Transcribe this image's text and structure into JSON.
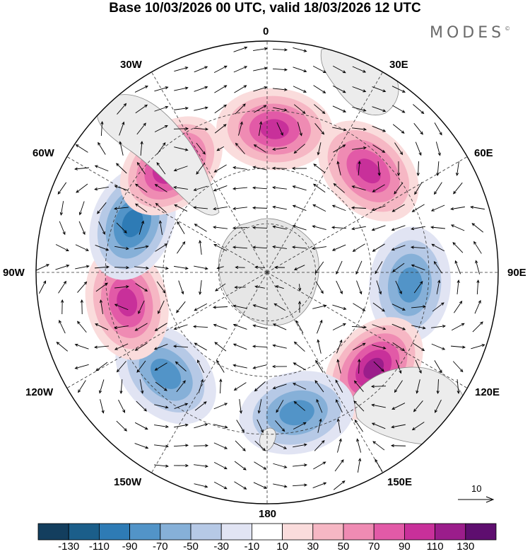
{
  "title": "Base 10/03/2026 00 UTC, valid 18/03/2026 12 UTC",
  "brand": "MODES",
  "brand_mark": "©",
  "longitude_labels": {
    "l0": "0",
    "l30e": "30E",
    "l60e": "60E",
    "l90e": "90E",
    "l120e": "120E",
    "l150e": "150E",
    "l180": "180",
    "l150w": "150W",
    "l120w": "120W",
    "l90w": "90W",
    "l60w": "60W",
    "l30w": "30W"
  },
  "colorbar": {
    "labels": [
      "-130",
      "-110",
      "-90",
      "-70",
      "-50",
      "-30",
      "-10",
      "10",
      "30",
      "50",
      "70",
      "90",
      "110",
      "130"
    ],
    "colors": [
      "#133e5e",
      "#1b5e8a",
      "#2e7bb5",
      "#5294c8",
      "#86b0d8",
      "#b6c9e6",
      "#e1e4f3",
      "#ffffff",
      "#fadcdc",
      "#f6b7c4",
      "#ef8bb3",
      "#e25aa7",
      "#c8309a",
      "#9b1d8b",
      "#5e0e6f"
    ]
  },
  "reference_vector_label": "10",
  "anomaly_cells": [
    {
      "lon": 3,
      "level": 4
    },
    {
      "lon": 45,
      "level": 4
    },
    {
      "lon": 95,
      "level": -3
    },
    {
      "lon": 132,
      "level": 5
    },
    {
      "lon": 168,
      "level": -3
    },
    {
      "lon": 225,
      "level": -3
    },
    {
      "lon": 258,
      "level": 4
    },
    {
      "lon": 290,
      "level": -4
    },
    {
      "lon": 318,
      "level": 5
    }
  ]
}
